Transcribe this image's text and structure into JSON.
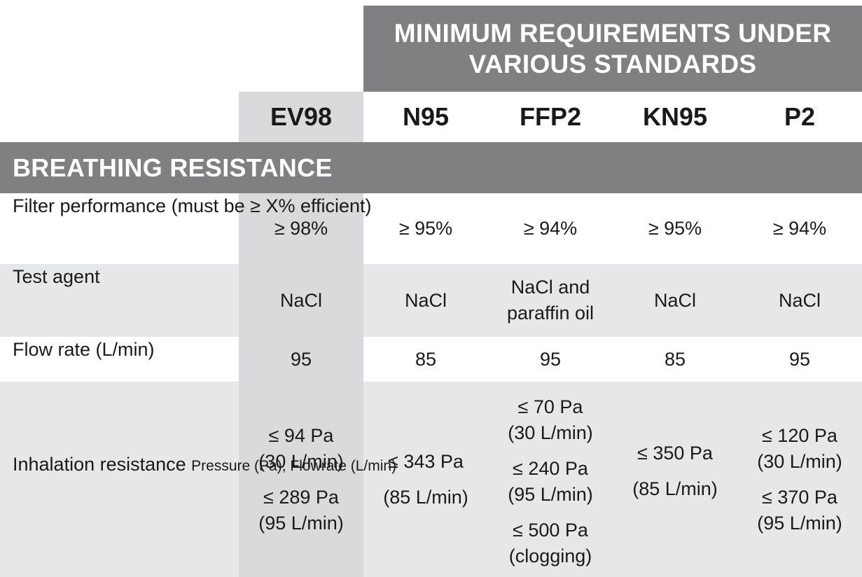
{
  "header": {
    "title_line1": "MINIMUM REQUIREMENTS UNDER",
    "title_line2": "VARIOUS STANDARDS",
    "columns": [
      "EV98",
      "N95",
      "FFP2",
      "KN95",
      "P2"
    ]
  },
  "section": {
    "title": "BREATHING RESISTANCE"
  },
  "rows": {
    "filter": {
      "label_line1": "Filter performance",
      "label_line2": "(must be ≥ X% efficient)",
      "values": [
        "≥ 98%",
        "≥ 95%",
        "≥ 94%",
        "≥ 95%",
        "≥ 94%"
      ]
    },
    "agent": {
      "label": "Test agent",
      "values": [
        "NaCl",
        "NaCl",
        "NaCl and paraffin oil",
        "NaCl",
        "NaCl"
      ],
      "ffp2_line1": "NaCl and",
      "ffp2_line2": "paraffin oil"
    },
    "flow": {
      "label": "Flow rate (L/min)",
      "values": [
        "95",
        "85",
        "95",
        "85",
        "95"
      ]
    },
    "inhalation": {
      "label": "Inhalation resistance",
      "sublabel": "Pressure (Pa), Flowrate (L/min)",
      "ev98": [
        "≤ 94 Pa",
        "(30 L/min)",
        "≤ 289 Pa",
        "(95 L/min)"
      ],
      "n95": [
        "≤ 343 Pa",
        "(85 L/min)"
      ],
      "ffp2": [
        "≤ 70 Pa",
        "(30 L/min)",
        "≤ 240 Pa",
        "(95 L/min)",
        "≤ 500 Pa",
        "(clogging)"
      ],
      "kn95": [
        "≤ 350 Pa",
        "(85 L/min)"
      ],
      "p2": [
        "≤ 120 Pa",
        "(30 L/min)",
        "≤ 370 Pa",
        "(95 L/min)"
      ]
    }
  },
  "colors": {
    "header_gray": "#808083",
    "row_shade": "#e6e7e8",
    "ev98_highlight": "#d9dadb"
  }
}
